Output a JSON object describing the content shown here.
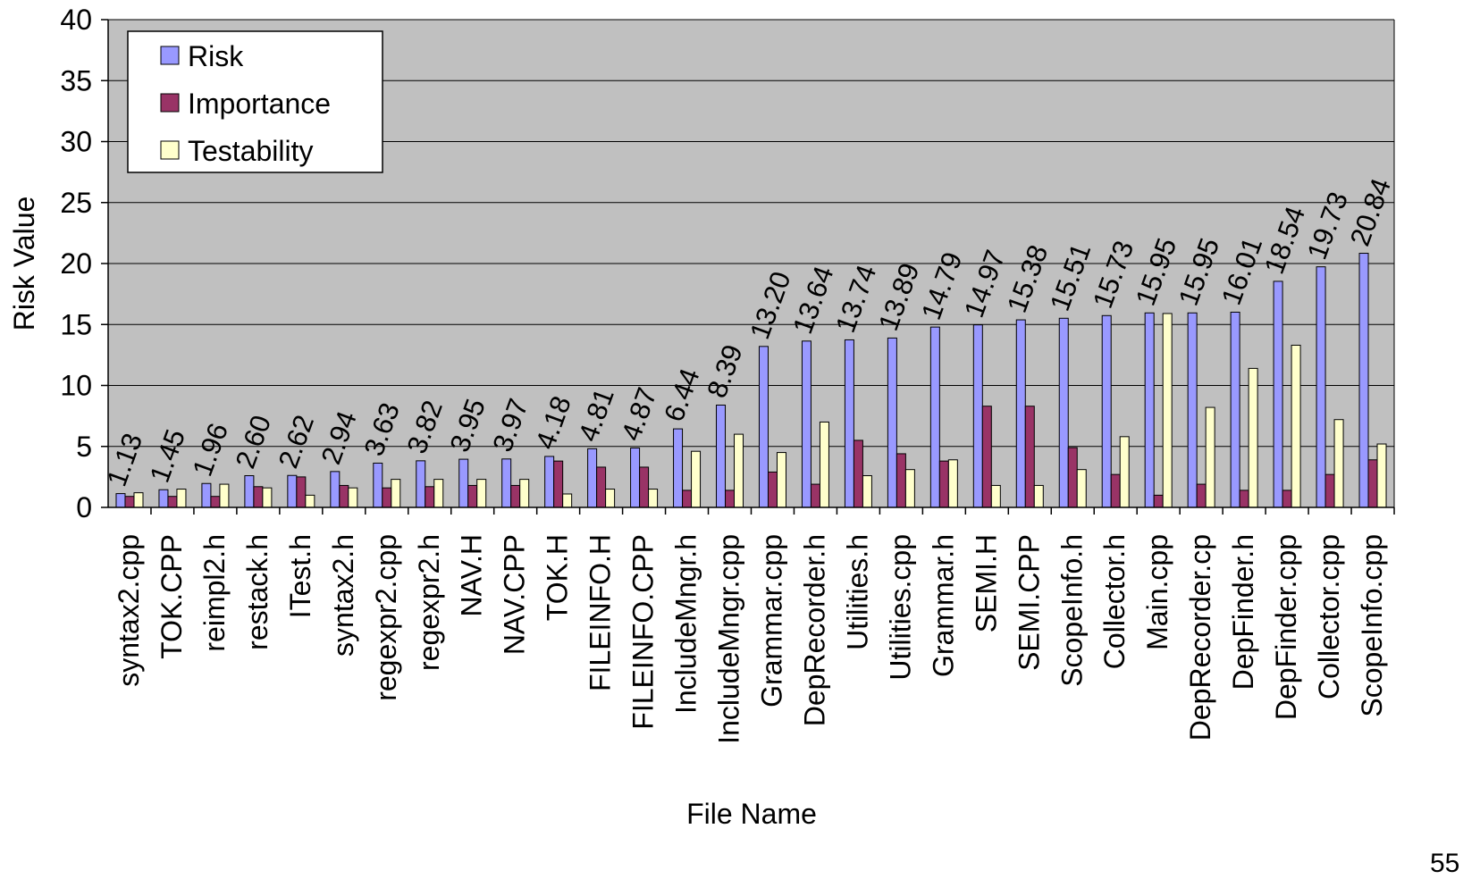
{
  "chart_data": {
    "type": "bar",
    "title": "",
    "xlabel": "File Name",
    "ylabel": "Risk Value",
    "ylim": [
      0,
      40
    ],
    "yticks": [
      0,
      5,
      10,
      15,
      20,
      25,
      30,
      35,
      40
    ],
    "grid": true,
    "legend_position": "top-left",
    "categories": [
      "syntax2.cpp",
      "TOK.CPP",
      "reimpl2.h",
      "restack.h",
      "ITest.h",
      "syntax2.h",
      "regexpr2.cpp",
      "regexpr2.h",
      "NAV.H",
      "NAV.CPP",
      "TOK.H",
      "FILEINFO.H",
      "FILEINFO.CPP",
      "IncludeMngr.h",
      "IncludeMngr.cpp",
      "Grammar.cpp",
      "DepRecorder.h",
      "Utilities.h",
      "Utilities.cpp",
      "Grammar.h",
      "SEMI.H",
      "SEMI.CPP",
      "ScopeInfo.h",
      "Collector.h",
      "Main.cpp",
      "DepRecorder.cp",
      "DepFinder.h",
      "DepFinder.cpp",
      "Collector.cpp",
      "ScopeInfo.cpp"
    ],
    "series": [
      {
        "name": "Risk",
        "color": "#9999ff",
        "values": [
          1.13,
          1.45,
          1.96,
          2.6,
          2.62,
          2.94,
          3.63,
          3.82,
          3.95,
          3.97,
          4.18,
          4.81,
          4.87,
          6.44,
          8.39,
          13.2,
          13.64,
          13.74,
          13.89,
          14.79,
          14.97,
          15.38,
          15.51,
          15.73,
          15.95,
          15.95,
          16.01,
          18.54,
          19.73,
          20.84
        ]
      },
      {
        "name": "Importance",
        "color": "#993366",
        "values": [
          0.9,
          0.9,
          0.9,
          1.7,
          2.5,
          1.8,
          1.6,
          1.7,
          1.8,
          1.8,
          3.8,
          3.3,
          3.3,
          1.4,
          1.4,
          2.9,
          1.9,
          5.5,
          4.4,
          3.8,
          8.3,
          8.3,
          4.9,
          2.7,
          1.0,
          1.9,
          1.4,
          1.4,
          2.7,
          3.9
        ]
      },
      {
        "name": "Testability",
        "color": "#ffffcc",
        "values": [
          1.2,
          1.5,
          1.9,
          1.6,
          1.0,
          1.6,
          2.3,
          2.3,
          2.3,
          2.3,
          1.1,
          1.5,
          1.5,
          4.6,
          6.0,
          4.5,
          7.0,
          2.6,
          3.1,
          3.9,
          1.8,
          1.8,
          3.1,
          5.8,
          15.9,
          8.2,
          11.4,
          13.3,
          7.2,
          5.2
        ]
      }
    ],
    "data_labels": [
      "1.13",
      "1.45",
      "1.96",
      "2.60",
      "2.62",
      "2.94",
      "3.63",
      "3.82",
      "3.95",
      "3.97",
      "4.18",
      "4.81",
      "4.87",
      "6.44",
      "8.39",
      "13.20",
      "13.64",
      "13.74",
      "13.89",
      "14.79",
      "14.97",
      "15.38",
      "15.51",
      "15.73",
      "15.95",
      "15.95",
      "16.01",
      "18.54",
      "19.73",
      "20.84"
    ]
  },
  "page_number": "55"
}
